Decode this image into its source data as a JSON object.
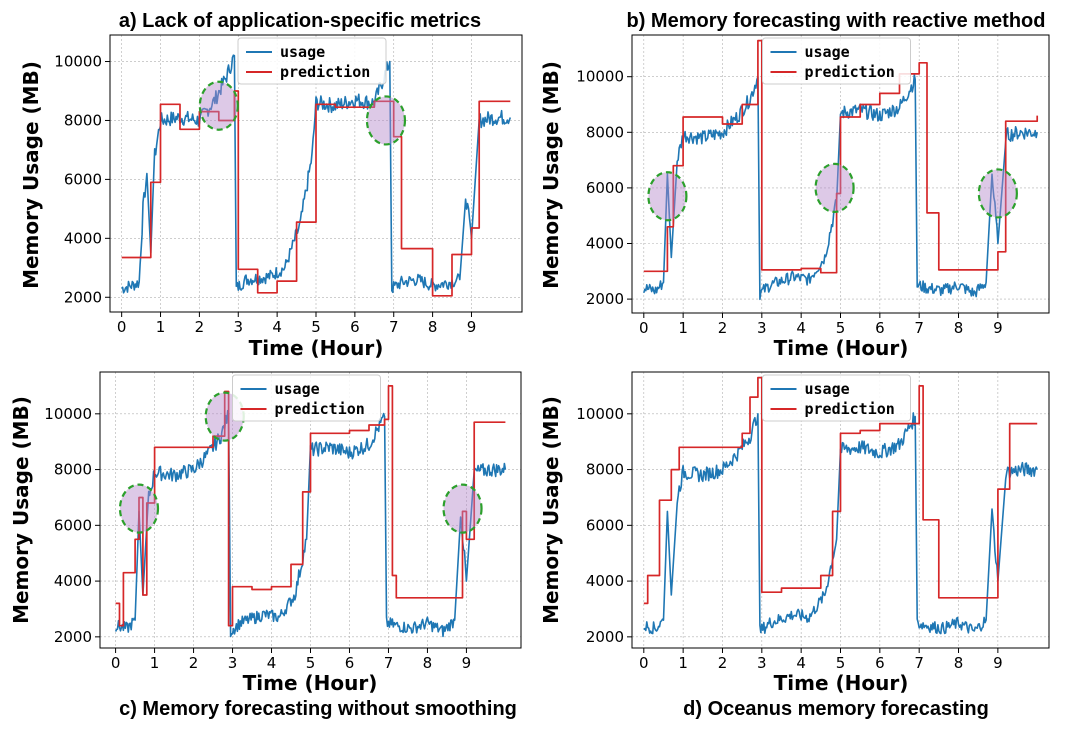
{
  "colors": {
    "usage": "#1f77b4",
    "prediction": "#d62728",
    "highlight_fill": "#b388c9",
    "highlight_edge": "#2ca02c",
    "grid": "#b0b0b0"
  },
  "chart_data": [
    {
      "type": "line",
      "title": "a) Lack of application-specific metrics",
      "xlabel": "Time (Hour)",
      "ylabel": "Memory Usage (MB)",
      "xlim": [
        -0.3,
        10.3
      ],
      "ylim": [
        1500,
        10900
      ],
      "xticks": [
        0,
        1,
        2,
        3,
        4,
        5,
        6,
        7,
        8,
        9
      ],
      "yticks": [
        2000,
        4000,
        6000,
        8000,
        10000
      ],
      "grid": true,
      "legend": {
        "position": "top-center",
        "entries": [
          "usage",
          "prediction"
        ]
      },
      "series": [
        {
          "name": "usage",
          "color": "#1f77b4",
          "x": [
            0,
            0.25,
            0.45,
            0.55,
            0.65,
            0.75,
            0.85,
            1.0,
            1.5,
            2.0,
            2.4,
            2.7,
            2.9,
            2.95,
            3.2,
            3.8,
            4.2,
            4.6,
            4.9,
            5.0,
            5.5,
            6.0,
            6.5,
            6.9,
            6.95,
            7.2,
            7.6,
            8.0,
            8.4,
            8.7,
            8.85,
            9.0,
            9.2,
            9.6,
            10.0
          ],
          "y": [
            2300,
            2400,
            2500,
            5000,
            6200,
            3500,
            6800,
            8000,
            8100,
            8000,
            8700,
            9500,
            10200,
            2300,
            2600,
            2700,
            3000,
            4500,
            6800,
            8600,
            8500,
            8700,
            8600,
            10000,
            2300,
            2500,
            2600,
            2400,
            2500,
            2600,
            5500,
            4000,
            8000,
            8100,
            8100
          ]
        },
        {
          "name": "prediction",
          "color": "#d62728",
          "x": [
            0,
            0.55,
            0.75,
            1.0,
            1.5,
            2.0,
            2.5,
            2.9,
            3.0,
            3.5,
            4.0,
            4.5,
            5.0,
            5.5,
            6.0,
            6.5,
            7.0,
            7.2,
            8.0,
            8.5,
            9.0,
            9.2,
            10.0
          ],
          "y": [
            3350,
            3350,
            5900,
            8550,
            7700,
            8300,
            8000,
            9000,
            2950,
            2150,
            2550,
            4550,
            8550,
            8450,
            8450,
            8650,
            7450,
            3650,
            2050,
            3450,
            4350,
            8650,
            8650
          ]
        }
      ],
      "highlights": [
        {
          "x": 2.5,
          "y": 8500
        },
        {
          "x": 6.8,
          "y": 8000
        }
      ]
    },
    {
      "type": "line",
      "title": "b) Memory forecasting with reactive method",
      "xlabel": "Time (Hour)",
      "ylabel": "Memory Usage (MB)",
      "xlim": [
        -0.3,
        10.3
      ],
      "ylim": [
        1500,
        11500
      ],
      "xticks": [
        0,
        1,
        2,
        3,
        4,
        5,
        6,
        7,
        8,
        9
      ],
      "yticks": [
        2000,
        4000,
        6000,
        8000,
        10000
      ],
      "grid": true,
      "legend": {
        "position": "top-center",
        "entries": [
          "usage",
          "prediction"
        ]
      },
      "series": [
        {
          "name": "usage",
          "color": "#1f77b4",
          "x": [
            0,
            0.3,
            0.5,
            0.6,
            0.7,
            0.85,
            1.0,
            1.5,
            2.0,
            2.4,
            2.7,
            2.9,
            2.95,
            3.2,
            3.8,
            4.2,
            4.6,
            4.9,
            5.0,
            5.5,
            6.0,
            6.5,
            6.9,
            6.95,
            7.2,
            7.6,
            8.0,
            8.4,
            8.7,
            8.85,
            9.0,
            9.2,
            9.6,
            10.0
          ],
          "y": [
            2400,
            2300,
            2600,
            6500,
            3500,
            7000,
            7900,
            7800,
            8000,
            8600,
            9200,
            10000,
            2200,
            2500,
            2800,
            2700,
            3500,
            5500,
            8700,
            8800,
            8600,
            8900,
            9900,
            2500,
            2400,
            2300,
            2500,
            2200,
            2600,
            6500,
            4000,
            7900,
            8000,
            8000
          ]
        },
        {
          "name": "prediction",
          "color": "#d62728",
          "x": [
            0,
            0.6,
            0.75,
            1.0,
            1.5,
            2.0,
            2.5,
            2.9,
            3.0,
            3.5,
            4.0,
            4.5,
            4.9,
            5.0,
            5.5,
            6.0,
            6.5,
            7.0,
            7.2,
            7.5,
            8.0,
            8.5,
            9.0,
            9.2,
            10.0
          ],
          "y": [
            3000,
            4600,
            6800,
            8550,
            8550,
            8300,
            9000,
            11300,
            3050,
            3050,
            3100,
            2950,
            5800,
            8550,
            9000,
            9400,
            10100,
            10500,
            5100,
            3050,
            3050,
            3050,
            3700,
            8400,
            8600
          ]
        }
      ],
      "highlights": [
        {
          "x": 0.6,
          "y": 5700
        },
        {
          "x": 4.85,
          "y": 6000
        },
        {
          "x": 9.0,
          "y": 5800
        }
      ]
    },
    {
      "type": "line",
      "title": "c) Memory forecasting without smoothing",
      "xlabel": "Time (Hour)",
      "ylabel": "Memory Usage (MB)",
      "xlim": [
        -0.4,
        10.4
      ],
      "ylim": [
        1600,
        11500
      ],
      "xticks": [
        0,
        1,
        2,
        3,
        4,
        5,
        6,
        7,
        8,
        9
      ],
      "yticks": [
        2000,
        4000,
        6000,
        8000,
        10000
      ],
      "grid": true,
      "legend": {
        "position": "top-center",
        "entries": [
          "usage",
          "prediction"
        ]
      },
      "series": [
        {
          "name": "usage",
          "color": "#1f77b4",
          "x": [
            0,
            0.3,
            0.5,
            0.6,
            0.7,
            0.85,
            1.0,
            1.5,
            2.0,
            2.4,
            2.7,
            2.9,
            2.95,
            3.2,
            3.8,
            4.2,
            4.6,
            4.9,
            5.0,
            5.5,
            6.0,
            6.5,
            6.9,
            6.95,
            7.2,
            7.6,
            8.0,
            8.4,
            8.7,
            8.85,
            9.0,
            9.2,
            9.6,
            10.0
          ],
          "y": [
            2400,
            2300,
            2600,
            6500,
            3500,
            7000,
            7900,
            7800,
            8000,
            8600,
            9200,
            10000,
            2200,
            2500,
            2800,
            2700,
            3500,
            5500,
            8700,
            8800,
            8600,
            8900,
            9900,
            2500,
            2400,
            2300,
            2500,
            2200,
            2600,
            6500,
            4000,
            7900,
            8000,
            8000
          ]
        },
        {
          "name": "prediction",
          "color": "#d62728",
          "x": [
            0,
            0.1,
            0.2,
            0.5,
            0.6,
            0.7,
            0.8,
            1.0,
            1.5,
            2.0,
            2.5,
            2.8,
            2.9,
            3.0,
            3.5,
            4.0,
            4.5,
            4.8,
            5.0,
            5.5,
            6.0,
            6.5,
            6.9,
            7.0,
            7.1,
            7.2,
            8.0,
            8.5,
            8.9,
            9.0,
            9.2,
            9.6,
            10.0
          ],
          "y": [
            3200,
            2400,
            4300,
            5500,
            7000,
            3500,
            6800,
            8800,
            8800,
            8800,
            9200,
            10800,
            2400,
            3800,
            3700,
            3800,
            4600,
            7200,
            9300,
            9300,
            9400,
            9600,
            9800,
            11000,
            4200,
            3400,
            3400,
            3400,
            6500,
            5500,
            9700,
            9700,
            9700
          ]
        }
      ],
      "highlights": [
        {
          "x": 0.6,
          "y": 6600
        },
        {
          "x": 2.8,
          "y": 9900
        },
        {
          "x": 8.9,
          "y": 6600
        }
      ]
    },
    {
      "type": "line",
      "title": "d) Oceanus memory forecasting",
      "xlabel": "Time (Hour)",
      "ylabel": "Memory Usage (MB)",
      "xlim": [
        -0.3,
        10.3
      ],
      "ylim": [
        1600,
        11500
      ],
      "xticks": [
        0,
        1,
        2,
        3,
        4,
        5,
        6,
        7,
        8,
        9
      ],
      "yticks": [
        2000,
        4000,
        6000,
        8000,
        10000
      ],
      "grid": true,
      "legend": {
        "position": "top-center",
        "entries": [
          "usage",
          "prediction"
        ]
      },
      "series": [
        {
          "name": "usage",
          "color": "#1f77b4",
          "x": [
            0,
            0.3,
            0.5,
            0.6,
            0.7,
            0.85,
            1.0,
            1.5,
            2.0,
            2.4,
            2.7,
            2.9,
            2.95,
            3.2,
            3.8,
            4.2,
            4.6,
            4.9,
            5.0,
            5.5,
            6.0,
            6.5,
            6.9,
            6.95,
            7.2,
            7.6,
            8.0,
            8.4,
            8.7,
            8.85,
            9.0,
            9.2,
            9.6,
            10.0
          ],
          "y": [
            2400,
            2300,
            2600,
            6500,
            3500,
            7000,
            7900,
            7800,
            8000,
            8600,
            9200,
            10000,
            2200,
            2500,
            2800,
            2700,
            3500,
            5500,
            8700,
            8800,
            8600,
            8900,
            9900,
            2500,
            2400,
            2300,
            2500,
            2200,
            2600,
            6500,
            4000,
            7900,
            8000,
            8000
          ]
        },
        {
          "name": "prediction",
          "color": "#d62728",
          "x": [
            0,
            0.1,
            0.4,
            0.7,
            0.9,
            1.5,
            2.0,
            2.5,
            2.7,
            2.9,
            3.0,
            3.5,
            4.0,
            4.5,
            4.8,
            5.0,
            5.5,
            6.0,
            6.5,
            7.0,
            7.1,
            7.5,
            8.0,
            8.5,
            9.0,
            9.3,
            10.0
          ],
          "y": [
            3200,
            4200,
            6900,
            8000,
            8800,
            8800,
            8800,
            9300,
            10600,
            11300,
            3600,
            3750,
            3750,
            4200,
            6500,
            9300,
            9400,
            9650,
            9650,
            11000,
            6200,
            3400,
            3400,
            3400,
            7300,
            9650,
            9650
          ]
        }
      ],
      "highlights": []
    }
  ]
}
